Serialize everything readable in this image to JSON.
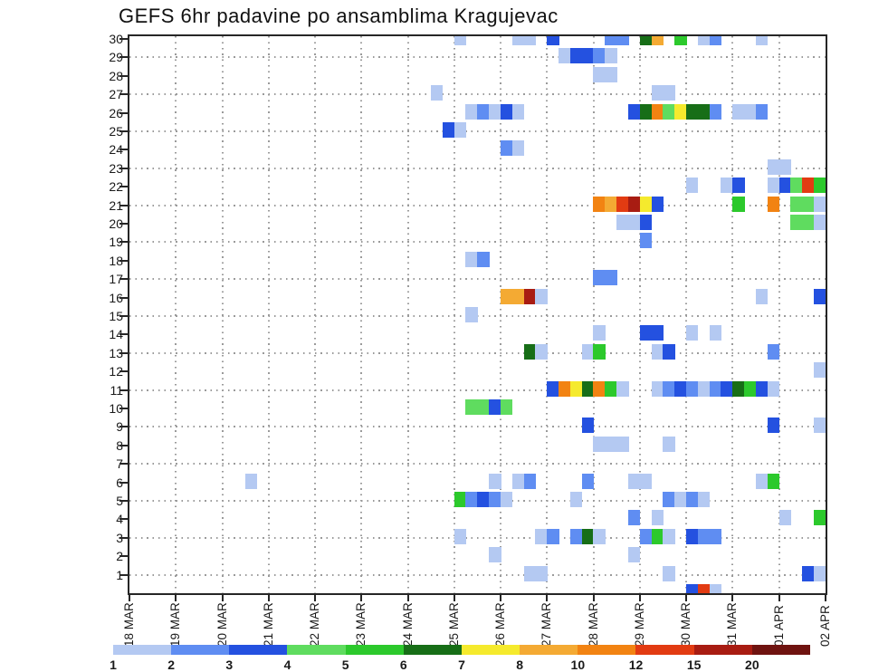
{
  "title": "GEFS 6hr padavine po ansamblima Kragujevac",
  "chart_data": {
    "type": "heatmap",
    "title": "GEFS 6hr padavine po ansamblima Kragujevac",
    "xlabel": "",
    "ylabel": "",
    "x_labels": [
      "18 MAR",
      "19 MAR",
      "20 MAR",
      "21 MAR",
      "22 MAR",
      "23 MAR",
      "24 MAR",
      "25 MAR",
      "26 MAR",
      "27 MAR",
      "28 MAR",
      "29 MAR",
      "30 MAR",
      "31 MAR",
      "01 APR",
      "02 APR"
    ],
    "steps_per_day": 4,
    "columns_total": 60,
    "y_min": 1,
    "y_max": 30,
    "grid": {
      "horizontal_dotted_rows": [
        1,
        3,
        5,
        7,
        9,
        11,
        13,
        15,
        17,
        19,
        21,
        23,
        25,
        27,
        29
      ],
      "vertical_dotted_every_day": true
    },
    "colorbar": {
      "boundary_labels": [
        "1",
        "2",
        "3",
        "4",
        "5",
        "6",
        "7",
        "8",
        "10",
        "12",
        "15",
        "20"
      ],
      "colors": [
        "#b4c9f2",
        "#5f8df2",
        "#2451e0",
        "#5fdc5f",
        "#2cc92c",
        "#176e17",
        "#f5ea2d",
        "#f4aa33",
        "#f28312",
        "#e23b12",
        "#a81c12",
        "#6f1310"
      ]
    },
    "palette": {
      "L": "#b4c9f2",
      "B2": "#5f8df2",
      "B3": "#2451e0",
      "LG": "#5fdc5f",
      "G": "#2cc92c",
      "DG": "#176e17",
      "Y": "#f5ea2d",
      "LO": "#f4aa33",
      "O": "#f28312",
      "R": "#e23b12",
      "DR": "#a81c12",
      "XR": "#6f1310"
    },
    "cells": [
      [
        30,
        28,
        "L"
      ],
      [
        30,
        33,
        "L"
      ],
      [
        30,
        34,
        "L"
      ],
      [
        30,
        36,
        "B3"
      ],
      [
        30,
        41,
        "B2"
      ],
      [
        30,
        42,
        "B2"
      ],
      [
        30,
        44,
        "DG"
      ],
      [
        30,
        45,
        "LO"
      ],
      [
        30,
        47,
        "G"
      ],
      [
        30,
        49,
        "L"
      ],
      [
        30,
        50,
        "B2"
      ],
      [
        30,
        54,
        "L"
      ],
      [
        29,
        37,
        "L"
      ],
      [
        29,
        38,
        "B3"
      ],
      [
        29,
        39,
        "B3"
      ],
      [
        29,
        40,
        "B2"
      ],
      [
        29,
        41,
        "L"
      ],
      [
        28,
        40,
        "L"
      ],
      [
        28,
        41,
        "L"
      ],
      [
        27,
        26,
        "L"
      ],
      [
        27,
        45,
        "L"
      ],
      [
        27,
        46,
        "L"
      ],
      [
        26,
        29,
        "L"
      ],
      [
        26,
        30,
        "B2"
      ],
      [
        26,
        31,
        "L"
      ],
      [
        26,
        32,
        "B3"
      ],
      [
        26,
        33,
        "L"
      ],
      [
        26,
        43,
        "B3"
      ],
      [
        26,
        44,
        "DG"
      ],
      [
        26,
        45,
        "O"
      ],
      [
        26,
        46,
        "LG"
      ],
      [
        26,
        47,
        "Y"
      ],
      [
        26,
        48,
        "DG"
      ],
      [
        26,
        49,
        "DG"
      ],
      [
        26,
        50,
        "B2"
      ],
      [
        26,
        52,
        "L"
      ],
      [
        26,
        53,
        "L"
      ],
      [
        26,
        54,
        "B2"
      ],
      [
        25,
        27,
        "B3"
      ],
      [
        25,
        28,
        "L"
      ],
      [
        24,
        32,
        "B2"
      ],
      [
        24,
        33,
        "L"
      ],
      [
        23,
        55,
        "L"
      ],
      [
        23,
        56,
        "L"
      ],
      [
        22,
        48,
        "L"
      ],
      [
        22,
        51,
        "L"
      ],
      [
        22,
        52,
        "B3"
      ],
      [
        22,
        55,
        "L"
      ],
      [
        22,
        56,
        "B3"
      ],
      [
        22,
        57,
        "LG"
      ],
      [
        22,
        58,
        "R"
      ],
      [
        22,
        59,
        "G"
      ],
      [
        21,
        40,
        "O"
      ],
      [
        21,
        41,
        "LO"
      ],
      [
        21,
        42,
        "R"
      ],
      [
        21,
        43,
        "DR"
      ],
      [
        21,
        44,
        "Y"
      ],
      [
        21,
        45,
        "B3"
      ],
      [
        21,
        52,
        "G"
      ],
      [
        21,
        55,
        "O"
      ],
      [
        21,
        57,
        "LG"
      ],
      [
        21,
        58,
        "LG"
      ],
      [
        21,
        59,
        "L"
      ],
      [
        20,
        42,
        "L"
      ],
      [
        20,
        43,
        "L"
      ],
      [
        20,
        44,
        "B3"
      ],
      [
        20,
        57,
        "LG"
      ],
      [
        20,
        58,
        "LG"
      ],
      [
        20,
        59,
        "L"
      ],
      [
        19,
        44,
        "B2"
      ],
      [
        18,
        29,
        "L"
      ],
      [
        18,
        30,
        "B2"
      ],
      [
        17,
        40,
        "B2"
      ],
      [
        17,
        41,
        "B2"
      ],
      [
        16,
        32,
        "LO"
      ],
      [
        16,
        33,
        "LO"
      ],
      [
        16,
        34,
        "DR"
      ],
      [
        16,
        35,
        "L"
      ],
      [
        16,
        54,
        "L"
      ],
      [
        16,
        59,
        "B3"
      ],
      [
        15,
        29,
        "L"
      ],
      [
        14,
        40,
        "L"
      ],
      [
        14,
        44,
        "B3"
      ],
      [
        14,
        45,
        "B3"
      ],
      [
        14,
        48,
        "L"
      ],
      [
        14,
        50,
        "L"
      ],
      [
        13,
        34,
        "DG"
      ],
      [
        13,
        35,
        "L"
      ],
      [
        13,
        39,
        "L"
      ],
      [
        13,
        40,
        "G"
      ],
      [
        13,
        45,
        "L"
      ],
      [
        13,
        46,
        "B3"
      ],
      [
        13,
        55,
        "B2"
      ],
      [
        12,
        59,
        "L"
      ],
      [
        11,
        36,
        "B3"
      ],
      [
        11,
        37,
        "O"
      ],
      [
        11,
        38,
        "Y"
      ],
      [
        11,
        39,
        "DG"
      ],
      [
        11,
        40,
        "O"
      ],
      [
        11,
        41,
        "G"
      ],
      [
        11,
        42,
        "L"
      ],
      [
        11,
        45,
        "L"
      ],
      [
        11,
        46,
        "B2"
      ],
      [
        11,
        47,
        "B3"
      ],
      [
        11,
        48,
        "B2"
      ],
      [
        11,
        49,
        "L"
      ],
      [
        11,
        50,
        "B2"
      ],
      [
        11,
        51,
        "B3"
      ],
      [
        11,
        52,
        "DG"
      ],
      [
        11,
        53,
        "G"
      ],
      [
        11,
        54,
        "B3"
      ],
      [
        11,
        55,
        "L"
      ],
      [
        10,
        29,
        "LG"
      ],
      [
        10,
        30,
        "LG"
      ],
      [
        10,
        31,
        "B3"
      ],
      [
        10,
        32,
        "LG"
      ],
      [
        9,
        39,
        "B3"
      ],
      [
        9,
        55,
        "B3"
      ],
      [
        9,
        59,
        "L"
      ],
      [
        8,
        40,
        "L"
      ],
      [
        8,
        41,
        "L"
      ],
      [
        8,
        42,
        "L"
      ],
      [
        8,
        46,
        "L"
      ],
      [
        6,
        10,
        "L"
      ],
      [
        6,
        31,
        "L"
      ],
      [
        6,
        33,
        "L"
      ],
      [
        6,
        34,
        "B2"
      ],
      [
        6,
        39,
        "B2"
      ],
      [
        6,
        43,
        "L"
      ],
      [
        6,
        44,
        "L"
      ],
      [
        6,
        54,
        "L"
      ],
      [
        6,
        55,
        "G"
      ],
      [
        5,
        28,
        "G"
      ],
      [
        5,
        29,
        "B2"
      ],
      [
        5,
        30,
        "B3"
      ],
      [
        5,
        31,
        "B2"
      ],
      [
        5,
        32,
        "L"
      ],
      [
        5,
        38,
        "L"
      ],
      [
        5,
        46,
        "B2"
      ],
      [
        5,
        47,
        "L"
      ],
      [
        5,
        48,
        "B2"
      ],
      [
        5,
        49,
        "L"
      ],
      [
        4,
        43,
        "B2"
      ],
      [
        4,
        45,
        "L"
      ],
      [
        4,
        56,
        "L"
      ],
      [
        4,
        59,
        "G"
      ],
      [
        3,
        28,
        "L"
      ],
      [
        3,
        35,
        "L"
      ],
      [
        3,
        36,
        "B2"
      ],
      [
        3,
        38,
        "B2"
      ],
      [
        3,
        39,
        "DG"
      ],
      [
        3,
        40,
        "L"
      ],
      [
        3,
        44,
        "B2"
      ],
      [
        3,
        45,
        "G"
      ],
      [
        3,
        46,
        "L"
      ],
      [
        3,
        48,
        "B3"
      ],
      [
        3,
        49,
        "B2"
      ],
      [
        3,
        50,
        "B2"
      ],
      [
        2,
        31,
        "L"
      ],
      [
        2,
        43,
        "L"
      ],
      [
        1,
        34,
        "L"
      ],
      [
        1,
        35,
        "L"
      ],
      [
        1,
        46,
        "L"
      ],
      [
        1,
        58,
        "B3"
      ],
      [
        1,
        59,
        "L"
      ],
      [
        0,
        48,
        "B3"
      ],
      [
        0,
        49,
        "R"
      ],
      [
        0,
        50,
        "L"
      ]
    ]
  }
}
